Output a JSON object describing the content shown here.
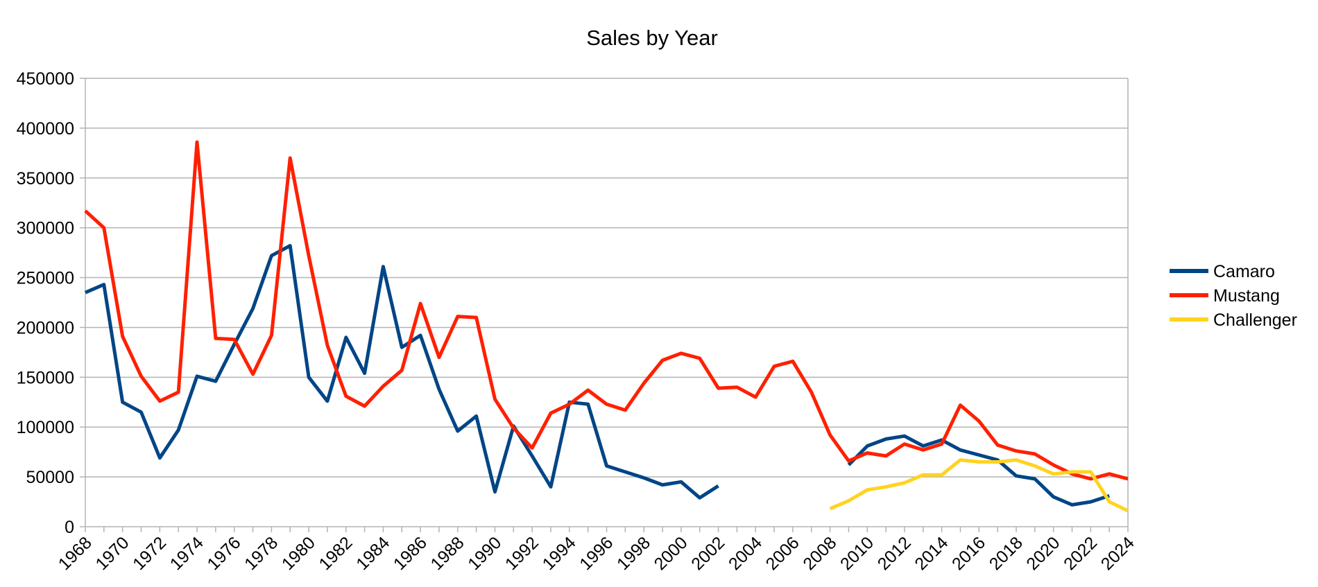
{
  "chart_data": {
    "type": "line",
    "title": "Sales by Year",
    "xlabel": "",
    "ylabel": "",
    "ylim": [
      0,
      450000
    ],
    "y_ticks": [
      0,
      50000,
      100000,
      150000,
      200000,
      250000,
      300000,
      350000,
      400000,
      450000
    ],
    "xlim": [
      1968,
      2024
    ],
    "x_tick_labels": [
      "1968",
      "1970",
      "1972",
      "1974",
      "1976",
      "1978",
      "1980",
      "1982",
      "1984",
      "1986",
      "1988",
      "1990",
      "1992",
      "1994",
      "1996",
      "1998",
      "2000",
      "2002",
      "2004",
      "2006",
      "2008",
      "2010",
      "2012",
      "2014",
      "2016",
      "2018",
      "2020",
      "2022",
      "2024"
    ],
    "grid": true,
    "legend_position": "right",
    "series": [
      {
        "name": "Camaro",
        "color": "#004586",
        "segments": [
          {
            "x": [
              1968,
              1969,
              1970,
              1971,
              1972,
              1973,
              1974,
              1975,
              1976,
              1977,
              1978,
              1979,
              1980,
              1981,
              1982,
              1983,
              1984,
              1985,
              1986,
              1987,
              1988,
              1989,
              1990,
              1991,
              1992,
              1993,
              1994,
              1995,
              1996,
              1997,
              1998,
              1999,
              2000,
              2001,
              2002
            ],
            "y": [
              235000,
              243000,
              125000,
              115000,
              69000,
              97000,
              151000,
              146000,
              183000,
              219000,
              272000,
              282000,
              150000,
              126000,
              190000,
              154000,
              261000,
              180000,
              192000,
              138000,
              96000,
              111000,
              35000,
              101000,
              71000,
              40000,
              125000,
              123000,
              61000,
              55000,
              49000,
              42000,
              45000,
              29000,
              41000
            ]
          },
          {
            "x": [
              2009,
              2010,
              2011,
              2012,
              2013,
              2014,
              2015,
              2016,
              2017,
              2018,
              2019,
              2020,
              2021,
              2022,
              2023
            ],
            "y": [
              62000,
              81000,
              88000,
              91000,
              81000,
              87000,
              77000,
              72000,
              67000,
              51000,
              48000,
              30000,
              22000,
              25000,
              31000
            ]
          }
        ]
      },
      {
        "name": "Mustang",
        "color": "#ff2000",
        "segments": [
          {
            "x": [
              1968,
              1969,
              1970,
              1971,
              1972,
              1973,
              1974,
              1975,
              1976,
              1977,
              1978,
              1979,
              1980,
              1981,
              1982,
              1983,
              1984,
              1985,
              1986,
              1987,
              1988,
              1989,
              1990,
              1991,
              1992,
              1993,
              1994,
              1995,
              1996,
              1997,
              1998,
              1999,
              2000,
              2001,
              2002,
              2003,
              2004,
              2005,
              2006,
              2007,
              2008,
              2009,
              2010,
              2011,
              2012,
              2013,
              2014,
              2015,
              2016,
              2017,
              2018,
              2019,
              2020,
              2021,
              2022,
              2023,
              2024
            ],
            "y": [
              317000,
              300000,
              191000,
              151000,
              126000,
              135000,
              386000,
              189000,
              188000,
              153000,
              192000,
              370000,
              272000,
              182000,
              131000,
              121000,
              141000,
              157000,
              224000,
              170000,
              211000,
              210000,
              128000,
              99000,
              79000,
              114000,
              123000,
              137000,
              123000,
              117000,
              144000,
              167000,
              174000,
              169000,
              139000,
              140000,
              130000,
              161000,
              166000,
              135000,
              92000,
              66000,
              74000,
              71000,
              83000,
              77000,
              83000,
              122000,
              106000,
              82000,
              76000,
              73000,
              62000,
              53000,
              48000,
              53000,
              48000
            ]
          }
        ]
      },
      {
        "name": "Challenger",
        "color": "#ffd320",
        "segments": [
          {
            "x": [
              2008,
              2009,
              2010,
              2011,
              2012,
              2013,
              2014,
              2015,
              2016,
              2017,
              2018,
              2019,
              2020,
              2021,
              2022,
              2023,
              2024
            ],
            "y": [
              18000,
              26000,
              37000,
              40000,
              44000,
              52000,
              52000,
              67000,
              65000,
              65000,
              67000,
              61000,
              53000,
              55000,
              55000,
              25000,
              16000
            ]
          }
        ]
      }
    ]
  }
}
